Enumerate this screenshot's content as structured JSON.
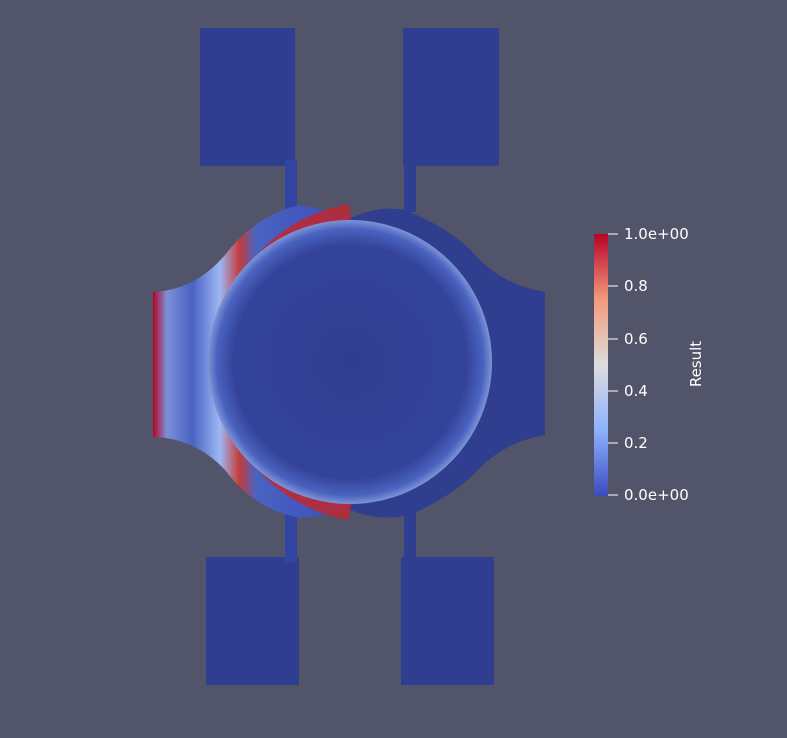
{
  "colors": {
    "background": "#525469",
    "low": "#3b4cc0",
    "mid": "#dddddd",
    "high": "#b40426",
    "geometry": "#2f3e8f"
  },
  "colorbar": {
    "title": "Result",
    "range": [
      0.0,
      1.0
    ],
    "colormap": "cool-to-warm",
    "ticks": [
      "1.0e+00",
      "0.8",
      "0.6",
      "0.4",
      "0.2",
      "0.0e+00"
    ]
  }
}
